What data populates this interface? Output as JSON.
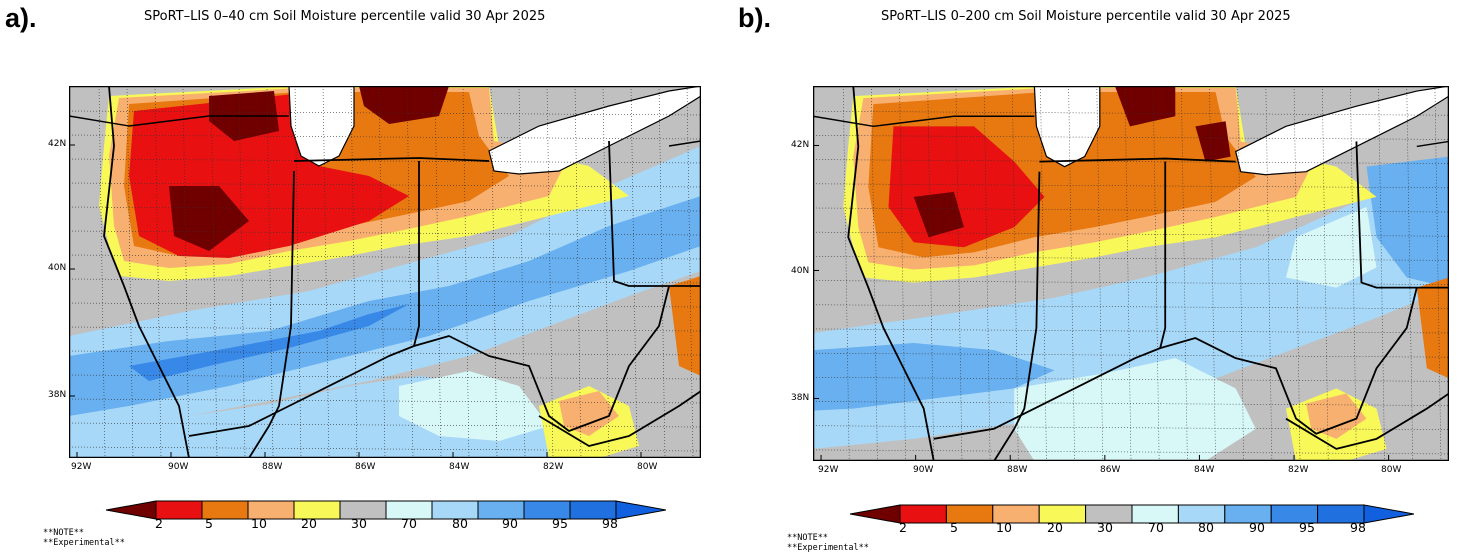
{
  "panels": [
    {
      "letter": "a).",
      "title": "SPoRT–LIS 0–40 cm Soil Moisture percentile valid 30 Apr 2025",
      "lat_labels": [
        "42N",
        "40N",
        "38N"
      ],
      "lon_labels": [
        "92W",
        "90W",
        "88W",
        "86W",
        "84W",
        "82W",
        "80W"
      ]
    },
    {
      "letter": "b).",
      "title": "SPoRT–LIS 0–200 cm Soil Moisture percentile valid 30 Apr 2025",
      "lat_labels": [
        "42N",
        "40N",
        "38N"
      ],
      "lon_labels": [
        "92W",
        "90W",
        "88W",
        "86W",
        "84W",
        "82W",
        "80W"
      ]
    }
  ],
  "colorbar": {
    "labels": [
      "2",
      "5",
      "10",
      "20",
      "30",
      "70",
      "80",
      "90",
      "95",
      "98"
    ],
    "colors": [
      "#a81010",
      "#e81010",
      "#e87810",
      "#f8b070",
      "#f8f858",
      "#c0c0c0",
      "#d8f8f8",
      "#a8d8f8",
      "#68b0f0",
      "#3888e8",
      "#2070e0"
    ],
    "below_color": "#700000",
    "above_color": "#1060e0"
  },
  "notes": [
    "**NOTE**",
    "**Experimental**"
  ],
  "map_colors": {
    "dry_extreme": "#700000",
    "dry_strong": "#e81010",
    "dry_mod": "#e87810",
    "dry_mild": "#f8b070",
    "dry_slight": "#f8f858",
    "normal": "#c0c0c0",
    "wet_slight": "#d8f8f8",
    "wet_mild": "#a8d8f8",
    "wet_mod": "#68b0f0",
    "wet_strong": "#3888e8",
    "lake": "#ffffff"
  }
}
